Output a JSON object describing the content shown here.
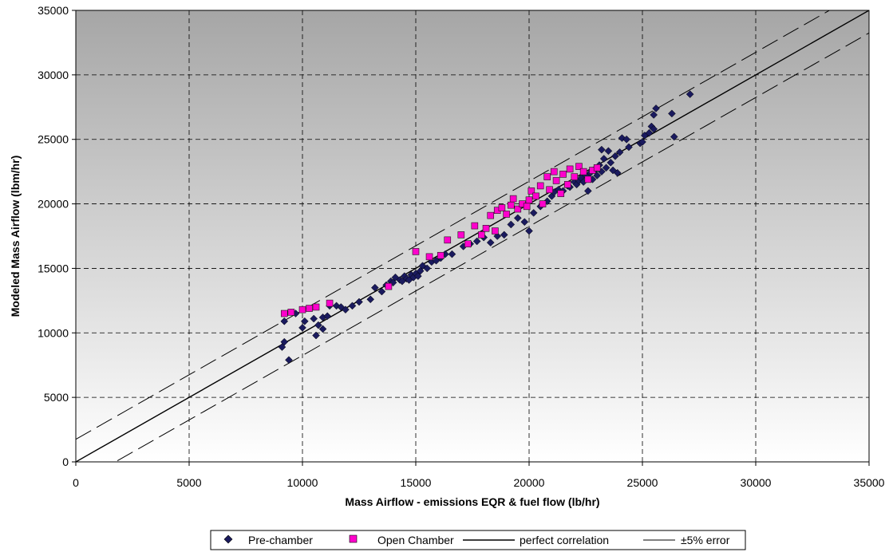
{
  "chart_data": {
    "type": "scatter",
    "title": "",
    "xlabel": "Mass Airflow - emissions EQR & fuel flow (lb/hr)",
    "ylabel": "Modeled Mass Airflow (lbm/hr)",
    "xlim": [
      0,
      35000
    ],
    "ylim": [
      0,
      35000
    ],
    "xticks": [
      0,
      5000,
      10000,
      15000,
      20000,
      25000,
      30000,
      35000
    ],
    "yticks": [
      0,
      5000,
      10000,
      15000,
      20000,
      25000,
      30000,
      35000
    ],
    "x_tick_labels": [
      "0",
      "5000",
      "10000",
      "15000",
      "20000",
      "25000",
      "30000",
      "35000"
    ],
    "y_tick_labels": [
      "0",
      "5000",
      "10000",
      "15000",
      "20000",
      "25000",
      "30000",
      "35000"
    ],
    "grid": true,
    "legend_position": "bottom",
    "background": "gradient grey (dark top) to white (bottom)",
    "series": [
      {
        "name": "Pre-chamber",
        "marker": "diamond",
        "color": "#1a1a5e",
        "points": [
          [
            9100,
            8900
          ],
          [
            9200,
            9300
          ],
          [
            9200,
            10900
          ],
          [
            9400,
            7900
          ],
          [
            9700,
            11500
          ],
          [
            10000,
            10400
          ],
          [
            10100,
            10900
          ],
          [
            10500,
            11100
          ],
          [
            10600,
            9800
          ],
          [
            10700,
            10600
          ],
          [
            10900,
            11200
          ],
          [
            10900,
            10300
          ],
          [
            11100,
            11300
          ],
          [
            11200,
            12100
          ],
          [
            11500,
            12100
          ],
          [
            11700,
            12000
          ],
          [
            11900,
            11800
          ],
          [
            12200,
            12100
          ],
          [
            12500,
            12400
          ],
          [
            13000,
            12600
          ],
          [
            13200,
            13500
          ],
          [
            13500,
            13200
          ],
          [
            13700,
            13700
          ],
          [
            13900,
            14000
          ],
          [
            14000,
            13900
          ],
          [
            14100,
            14300
          ],
          [
            14300,
            14100
          ],
          [
            14400,
            14000
          ],
          [
            14500,
            14400
          ],
          [
            14600,
            14200
          ],
          [
            14700,
            14100
          ],
          [
            14800,
            14500
          ],
          [
            14900,
            14300
          ],
          [
            15000,
            14600
          ],
          [
            15100,
            14400
          ],
          [
            15200,
            14800
          ],
          [
            15300,
            15200
          ],
          [
            15500,
            15000
          ],
          [
            15700,
            15500
          ],
          [
            15900,
            15600
          ],
          [
            16100,
            15800
          ],
          [
            16300,
            16100
          ],
          [
            16600,
            16100
          ],
          [
            17100,
            16700
          ],
          [
            17400,
            16900
          ],
          [
            17700,
            17100
          ],
          [
            18000,
            17400
          ],
          [
            18300,
            17000
          ],
          [
            18600,
            17500
          ],
          [
            18900,
            17600
          ],
          [
            19200,
            18400
          ],
          [
            19500,
            18900
          ],
          [
            19800,
            18600
          ],
          [
            20000,
            17900
          ],
          [
            20200,
            19300
          ],
          [
            20500,
            19800
          ],
          [
            20800,
            20200
          ],
          [
            21000,
            20600
          ],
          [
            21100,
            20900
          ],
          [
            21300,
            21100
          ],
          [
            21500,
            21000
          ],
          [
            21700,
            21400
          ],
          [
            21800,
            21300
          ],
          [
            22000,
            21700
          ],
          [
            22100,
            21500
          ],
          [
            22200,
            21800
          ],
          [
            22300,
            22000
          ],
          [
            22400,
            21700
          ],
          [
            22500,
            22200
          ],
          [
            22600,
            21000
          ],
          [
            22700,
            22400
          ],
          [
            22800,
            21900
          ],
          [
            22900,
            22600
          ],
          [
            23000,
            22200
          ],
          [
            23100,
            23000
          ],
          [
            23200,
            22500
          ],
          [
            23200,
            24200
          ],
          [
            23300,
            23500
          ],
          [
            23400,
            22800
          ],
          [
            23500,
            24100
          ],
          [
            23600,
            23200
          ],
          [
            23700,
            22600
          ],
          [
            23800,
            23700
          ],
          [
            23900,
            22400
          ],
          [
            24000,
            24000
          ],
          [
            24100,
            25100
          ],
          [
            24300,
            25000
          ],
          [
            24400,
            24400
          ],
          [
            24900,
            24700
          ],
          [
            25000,
            24800
          ],
          [
            25100,
            25300
          ],
          [
            25300,
            25500
          ],
          [
            25400,
            26000
          ],
          [
            25500,
            25800
          ],
          [
            25500,
            26900
          ],
          [
            25600,
            27400
          ],
          [
            26300,
            27000
          ],
          [
            26400,
            25200
          ],
          [
            27100,
            28500
          ]
        ]
      },
      {
        "name": "Open Chamber",
        "marker": "square",
        "color": "#ff00cc",
        "points": [
          [
            9200,
            11500
          ],
          [
            9500,
            11600
          ],
          [
            10000,
            11800
          ],
          [
            10300,
            11900
          ],
          [
            10600,
            12000
          ],
          [
            11200,
            12300
          ],
          [
            13800,
            13600
          ],
          [
            15000,
            16300
          ],
          [
            15600,
            15900
          ],
          [
            16100,
            16000
          ],
          [
            16400,
            17200
          ],
          [
            17000,
            17600
          ],
          [
            17300,
            16900
          ],
          [
            17600,
            18300
          ],
          [
            17900,
            17600
          ],
          [
            18100,
            18100
          ],
          [
            18300,
            19100
          ],
          [
            18500,
            17900
          ],
          [
            18600,
            19500
          ],
          [
            18800,
            19700
          ],
          [
            19000,
            19200
          ],
          [
            19200,
            19900
          ],
          [
            19300,
            20400
          ],
          [
            19500,
            19600
          ],
          [
            19700,
            20000
          ],
          [
            19900,
            19800
          ],
          [
            20000,
            20300
          ],
          [
            20100,
            21000
          ],
          [
            20300,
            20600
          ],
          [
            20500,
            21400
          ],
          [
            20600,
            20000
          ],
          [
            20800,
            22100
          ],
          [
            20900,
            21100
          ],
          [
            21100,
            22500
          ],
          [
            21200,
            21800
          ],
          [
            21400,
            20800
          ],
          [
            21500,
            22300
          ],
          [
            21700,
            21500
          ],
          [
            21800,
            22700
          ],
          [
            22000,
            22100
          ],
          [
            22200,
            22900
          ],
          [
            22400,
            22500
          ],
          [
            22600,
            21900
          ],
          [
            22800,
            22600
          ],
          [
            23000,
            22800
          ]
        ]
      },
      {
        "name": "perfect correlation",
        "line_style": "solid",
        "color": "#000000",
        "x": [
          0,
          35000
        ],
        "y": [
          0,
          35000
        ]
      },
      {
        "name": "±5% error",
        "line_style": "dashed",
        "color": "#000000",
        "upper": {
          "x": [
            0,
            35000
          ],
          "y": [
            1750,
            36750
          ]
        },
        "lower": {
          "x": [
            0,
            35000
          ],
          "y": [
            -1750,
            33250
          ]
        }
      }
    ]
  }
}
